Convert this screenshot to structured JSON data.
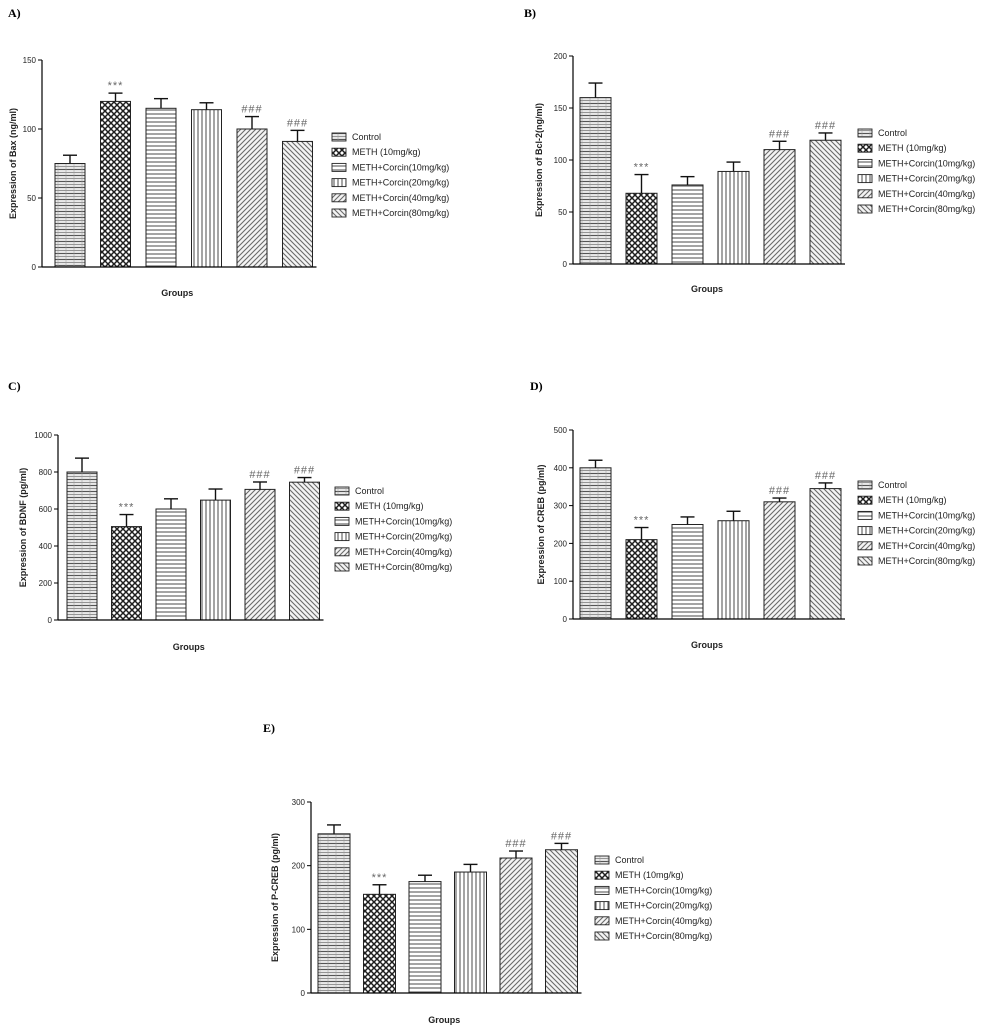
{
  "legend_labels": [
    "Control",
    "METH (10mg/kg)",
    "METH+Corcin(10mg/kg)",
    "METH+Corcin(20mg/kg)",
    "METH+Corcin(40mg/kg)",
    "METH+Corcin(80mg/kg)"
  ],
  "colors": {
    "bar_stroke": "#222222",
    "pattern_ink": "#4a4a4a",
    "sig_text": "#666666",
    "axis": "#000000"
  },
  "chart_data": [
    {
      "id": "A",
      "panel_label": "A)",
      "type": "bar",
      "categories": [
        "Control",
        "METH (10mg/kg)",
        "METH+Corcin(10mg/kg)",
        "METH+Corcin(20mg/kg)",
        "METH+Corcin(40mg/kg)",
        "METH+Corcin(80mg/kg)"
      ],
      "values": [
        75,
        120,
        115,
        114,
        100,
        91
      ],
      "errors": [
        6,
        6,
        7,
        5,
        9,
        8
      ],
      "significance": [
        "",
        "***",
        "",
        "",
        "###",
        "###"
      ],
      "ylim": [
        0,
        150
      ],
      "yticks": [
        0,
        50,
        100,
        150
      ],
      "ylabel": "Expression of Bax (ng/ml)",
      "xlabel": "Groups",
      "legend": "right"
    },
    {
      "id": "B",
      "panel_label": "B)",
      "type": "bar",
      "categories": [
        "Control",
        "METH (10mg/kg)",
        "METH+Corcin(10mg/kg)",
        "METH+Corcin(20mg/kg)",
        "METH+Corcin(40mg/kg)",
        "METH+Corcin(80mg/kg)"
      ],
      "values": [
        160,
        68,
        76,
        89,
        110,
        119
      ],
      "errors": [
        14,
        18,
        8,
        9,
        8,
        7
      ],
      "significance": [
        "",
        "***",
        "",
        "",
        "###",
        "###"
      ],
      "ylim": [
        0,
        200
      ],
      "yticks": [
        0,
        50,
        100,
        150,
        200
      ],
      "ylabel": "Expression of Bcl-2(ng/ml)",
      "xlabel": "Groups",
      "legend": "right"
    },
    {
      "id": "C",
      "panel_label": "C)",
      "type": "bar",
      "categories": [
        "Control",
        "METH (10mg/kg)",
        "METH+Corcin(10mg/kg)",
        "METH+Corcin(20mg/kg)",
        "METH+Corcin(40mg/kg)",
        "METH+Corcin(80mg/kg)"
      ],
      "values": [
        800,
        505,
        600,
        648,
        706,
        745
      ],
      "errors": [
        75,
        65,
        55,
        60,
        40,
        25
      ],
      "significance": [
        "",
        "***",
        "",
        "",
        "###",
        "###"
      ],
      "ylim": [
        0,
        1000
      ],
      "yticks": [
        0,
        200,
        400,
        600,
        800,
        1000
      ],
      "ylabel": "Expression of BDNF (pg/ml)",
      "xlabel": "Groups",
      "legend": "right"
    },
    {
      "id": "D",
      "panel_label": "D)",
      "type": "bar",
      "categories": [
        "Control",
        "METH (10mg/kg)",
        "METH+Corcin(10mg/kg)",
        "METH+Corcin(20mg/kg)",
        "METH+Corcin(40mg/kg)",
        "METH+Corcin(80mg/kg)"
      ],
      "values": [
        400,
        210,
        250,
        260,
        310,
        345
      ],
      "errors": [
        20,
        32,
        20,
        25,
        10,
        15
      ],
      "significance": [
        "",
        "***",
        "",
        "",
        "###",
        "###"
      ],
      "ylim": [
        0,
        500
      ],
      "yticks": [
        0,
        100,
        200,
        300,
        400,
        500
      ],
      "ylabel": "Expression of CREB (pg/ml)",
      "xlabel": "Groups",
      "legend": "right"
    },
    {
      "id": "E",
      "panel_label": "E)",
      "type": "bar",
      "categories": [
        "Control",
        "METH (10mg/kg)",
        "METH+Corcin(10mg/kg)",
        "METH+Corcin(20mg/kg)",
        "METH+Corcin(40mg/kg)",
        "METH+Corcin(80mg/kg)"
      ],
      "values": [
        250,
        155,
        175,
        190,
        212,
        225
      ],
      "errors": [
        14,
        15,
        10,
        12,
        11,
        10
      ],
      "significance": [
        "",
        "***",
        "",
        "",
        "###",
        "###"
      ],
      "ylim": [
        0,
        300
      ],
      "yticks": [
        0,
        100,
        200,
        300
      ],
      "ylabel": "Expression of P-CREB (pg/ml)",
      "xlabel": "Groups",
      "legend": "right"
    }
  ]
}
